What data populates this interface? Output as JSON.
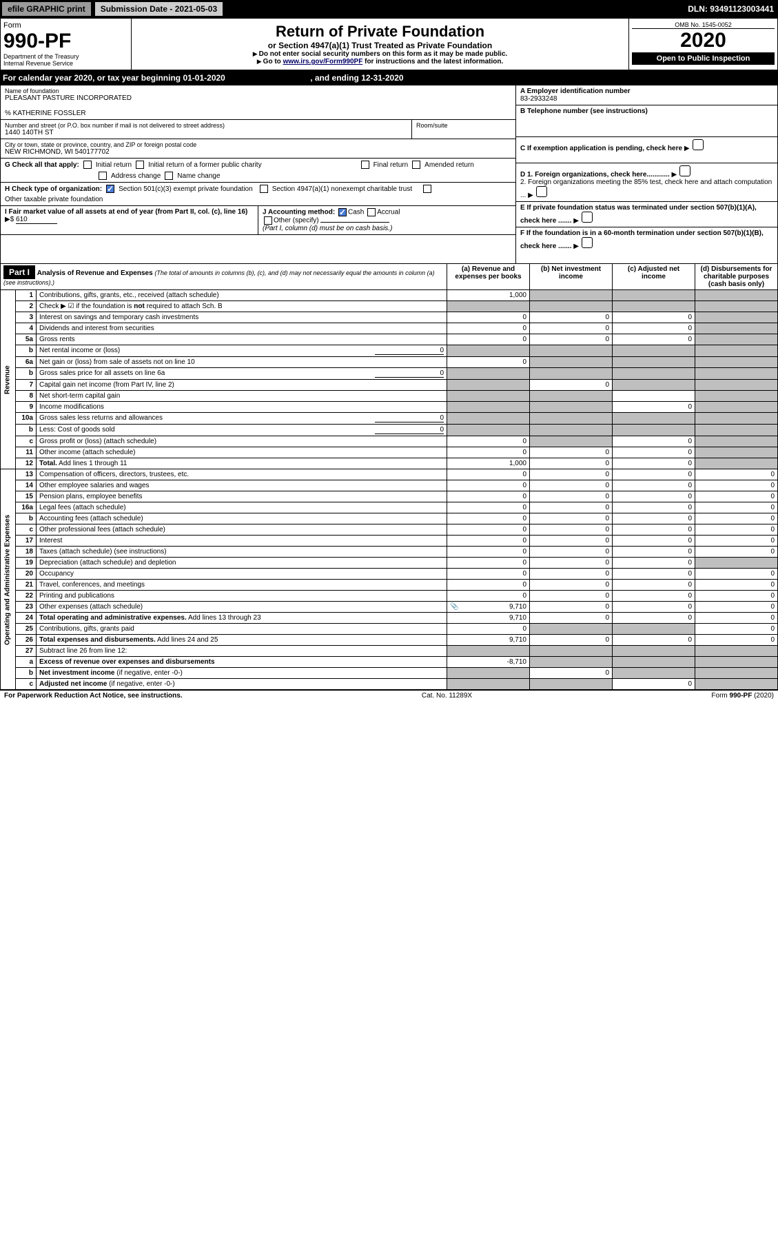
{
  "topbar": {
    "efile": "efile",
    "graphic": "GRAPHIC",
    "print": "print",
    "subdate_lbl": "Submission Date - 2021-05-03",
    "dln": "DLN: 93491123003441"
  },
  "hdr": {
    "form_lbl": "Form",
    "form_no": "990-PF",
    "dept": "Department of the Treasury",
    "irs": "Internal Revenue Service",
    "title": "Return of Private Foundation",
    "subtitle": "or Section 4947(a)(1) Trust Treated as Private Foundation",
    "inst1": "Do not enter social security numbers on this form as it may be made public.",
    "inst2": "Go to ",
    "inst2_link": "www.irs.gov/Form990PF",
    "inst2_tail": " for instructions and the latest information.",
    "omb": "OMB No. 1545-0052",
    "year": "2020",
    "open": "Open to Public Inspection"
  },
  "calyr": {
    "pre": "For calendar year 2020, or tax year beginning ",
    "beg": "01-01-2020",
    "mid": " , and ending ",
    "end": "12-31-2020"
  },
  "id": {
    "name_lbl": "Name of foundation",
    "name": "PLEASANT PASTURE INCORPORATED",
    "co": "% KATHERINE FOSSLER",
    "addr_lbl": "Number and street (or P.O. box number if mail is not delivered to street address)",
    "addr": "1440 140TH ST",
    "room_lbl": "Room/suite",
    "city_lbl": "City or town, state or province, country, and ZIP or foreign postal code",
    "city": "NEW RICHMOND, WI  540177702",
    "a_lbl": "A Employer identification number",
    "a": "83-2933248",
    "b_lbl": "B Telephone number (see instructions)",
    "b": "",
    "c_lbl": "C If exemption application is pending, check here",
    "d1": "D 1. Foreign organizations, check here............",
    "d2": "2. Foreign organizations meeting the 85% test, check here and attach computation ...",
    "e": "E  If private foundation status was terminated under section 507(b)(1)(A), check here .......",
    "f": "F  If the foundation is in a 60-month termination under section 507(b)(1)(B), check here ......."
  },
  "g": {
    "lbl": "G Check all that apply:",
    "o": [
      "Initial return",
      "Initial return of a former public charity",
      "Final return",
      "Amended return",
      "Address change",
      "Name change"
    ]
  },
  "h": {
    "lbl": "H Check type of organization:",
    "o": [
      "Section 501(c)(3) exempt private foundation",
      "Section 4947(a)(1) nonexempt charitable trust",
      "Other taxable private foundation"
    ]
  },
  "i": {
    "lbl": "I Fair market value of all assets at end of year (from Part II, col. (c), line 16)",
    "val": "610"
  },
  "j": {
    "lbl": "J Accounting method:",
    "o": [
      "Cash",
      "Accrual",
      "Other (specify)"
    ],
    "note": "(Part I, column (d) must be on cash basis.)"
  },
  "p1": {
    "part": "Part I",
    "title": "Analysis of Revenue and Expenses",
    "title_sub": "(The total of amounts in columns (b), (c), and (d) may not necessarily equal the amounts in column (a) (see instructions).)",
    "cols": {
      "a": "(a) Revenue and expenses per books",
      "b": "(b) Net investment income",
      "c": "(c) Adjusted net income",
      "d": "(d) Disbursements for charitable purposes (cash basis only)"
    },
    "rev_lbl": "Revenue",
    "exp_lbl": "Operating and Administrative Expenses",
    "rows": [
      {
        "n": "1",
        "d": "Contributions, gifts, grants, etc., received (attach schedule)",
        "a": "1,000",
        "b": "",
        "c": "",
        "dd": "",
        "gb": 1,
        "gc": 1,
        "gd": 1
      },
      {
        "n": "2",
        "d": "Check ▶ ☑ if the foundation is <b>not</b> required to attach Sch. B",
        "a": "",
        "b": "",
        "c": "",
        "dd": "",
        "ga": 1,
        "gb": 1,
        "gc": 1,
        "gd": 1,
        "html": 1
      },
      {
        "n": "3",
        "d": "Interest on savings and temporary cash investments",
        "a": "0",
        "b": "0",
        "c": "0",
        "dd": "",
        "gd": 1
      },
      {
        "n": "4",
        "d": "Dividends and interest from securities",
        "a": "0",
        "b": "0",
        "c": "0",
        "dd": "",
        "gd": 1
      },
      {
        "n": "5a",
        "d": "Gross rents",
        "a": "0",
        "b": "0",
        "c": "0",
        "dd": "",
        "gd": 1
      },
      {
        "n": "b",
        "d": "Net rental income or (loss)",
        "inline": "0",
        "a": "",
        "b": "",
        "c": "",
        "dd": "",
        "ga": 1,
        "gb": 1,
        "gc": 1,
        "gd": 1
      },
      {
        "n": "6a",
        "d": "Net gain or (loss) from sale of assets not on line 10",
        "a": "0",
        "b": "",
        "c": "",
        "dd": "",
        "gb": 1,
        "gc": 1,
        "gd": 1
      },
      {
        "n": "b",
        "d": "Gross sales price for all assets on line 6a",
        "inline": "0",
        "a": "",
        "b": "",
        "c": "",
        "dd": "",
        "ga": 1,
        "gb": 1,
        "gc": 1,
        "gd": 1
      },
      {
        "n": "7",
        "d": "Capital gain net income (from Part IV, line 2)",
        "a": "",
        "b": "0",
        "c": "",
        "dd": "",
        "ga": 1,
        "gc": 1,
        "gd": 1
      },
      {
        "n": "8",
        "d": "Net short-term capital gain",
        "a": "",
        "b": "",
        "c": "",
        "dd": "",
        "ga": 1,
        "gb": 1,
        "gd": 1
      },
      {
        "n": "9",
        "d": "Income modifications",
        "a": "",
        "b": "",
        "c": "0",
        "dd": "",
        "ga": 1,
        "gb": 1,
        "gd": 1
      },
      {
        "n": "10a",
        "d": "Gross sales less returns and allowances",
        "inline": "0",
        "a": "",
        "b": "",
        "c": "",
        "dd": "",
        "ga": 1,
        "gb": 1,
        "gc": 1,
        "gd": 1
      },
      {
        "n": "b",
        "d": "Less: Cost of goods sold",
        "inline": "0",
        "a": "",
        "b": "",
        "c": "",
        "dd": "",
        "ga": 1,
        "gb": 1,
        "gc": 1,
        "gd": 1
      },
      {
        "n": "c",
        "d": "Gross profit or (loss) (attach schedule)",
        "a": "0",
        "b": "",
        "c": "0",
        "dd": "",
        "gb": 1,
        "gd": 1
      },
      {
        "n": "11",
        "d": "Other income (attach schedule)",
        "a": "0",
        "b": "0",
        "c": "0",
        "dd": "",
        "gd": 1
      },
      {
        "n": "12",
        "d": "<b>Total.</b> Add lines 1 through 11",
        "a": "1,000",
        "b": "0",
        "c": "0",
        "dd": "",
        "gd": 1,
        "html": 1
      },
      {
        "n": "13",
        "d": "Compensation of officers, directors, trustees, etc.",
        "a": "0",
        "b": "0",
        "c": "0",
        "dd": "0"
      },
      {
        "n": "14",
        "d": "Other employee salaries and wages",
        "a": "0",
        "b": "0",
        "c": "0",
        "dd": "0"
      },
      {
        "n": "15",
        "d": "Pension plans, employee benefits",
        "a": "0",
        "b": "0",
        "c": "0",
        "dd": "0"
      },
      {
        "n": "16a",
        "d": "Legal fees (attach schedule)",
        "a": "0",
        "b": "0",
        "c": "0",
        "dd": "0"
      },
      {
        "n": "b",
        "d": "Accounting fees (attach schedule)",
        "a": "0",
        "b": "0",
        "c": "0",
        "dd": "0"
      },
      {
        "n": "c",
        "d": "Other professional fees (attach schedule)",
        "a": "0",
        "b": "0",
        "c": "0",
        "dd": "0"
      },
      {
        "n": "17",
        "d": "Interest",
        "a": "0",
        "b": "0",
        "c": "0",
        "dd": "0"
      },
      {
        "n": "18",
        "d": "Taxes (attach schedule) (see instructions)",
        "a": "0",
        "b": "0",
        "c": "0",
        "dd": "0"
      },
      {
        "n": "19",
        "d": "Depreciation (attach schedule) and depletion",
        "a": "0",
        "b": "0",
        "c": "0",
        "dd": "",
        "gd": 1
      },
      {
        "n": "20",
        "d": "Occupancy",
        "a": "0",
        "b": "0",
        "c": "0",
        "dd": "0"
      },
      {
        "n": "21",
        "d": "Travel, conferences, and meetings",
        "a": "0",
        "b": "0",
        "c": "0",
        "dd": "0"
      },
      {
        "n": "22",
        "d": "Printing and publications",
        "a": "0",
        "b": "0",
        "c": "0",
        "dd": "0"
      },
      {
        "n": "23",
        "d": "Other expenses (attach schedule)",
        "a": "9,710",
        "b": "0",
        "c": "0",
        "dd": "0",
        "icon": 1
      },
      {
        "n": "24",
        "d": "<b>Total operating and administrative expenses.</b> Add lines 13 through 23",
        "a": "9,710",
        "b": "0",
        "c": "0",
        "dd": "0",
        "html": 1
      },
      {
        "n": "25",
        "d": "Contributions, gifts, grants paid",
        "a": "0",
        "b": "",
        "c": "",
        "dd": "0",
        "gb": 1,
        "gc": 1
      },
      {
        "n": "26",
        "d": "<b>Total expenses and disbursements.</b> Add lines 24 and 25",
        "a": "9,710",
        "b": "0",
        "c": "0",
        "dd": "0",
        "html": 1
      },
      {
        "n": "27",
        "d": "Subtract line 26 from line 12:",
        "a": "",
        "b": "",
        "c": "",
        "dd": "",
        "ga": 1,
        "gb": 1,
        "gc": 1,
        "gd": 1
      },
      {
        "n": "a",
        "d": "<b>Excess of revenue over expenses and disbursements</b>",
        "a": "-8,710",
        "b": "",
        "c": "",
        "dd": "",
        "gb": 1,
        "gc": 1,
        "gd": 1,
        "html": 1
      },
      {
        "n": "b",
        "d": "<b>Net investment income</b> (if negative, enter -0-)",
        "a": "",
        "b": "0",
        "c": "",
        "dd": "",
        "ga": 1,
        "gc": 1,
        "gd": 1,
        "html": 1
      },
      {
        "n": "c",
        "d": "<b>Adjusted net income</b> (if negative, enter -0-)",
        "a": "",
        "b": "",
        "c": "0",
        "dd": "",
        "ga": 1,
        "gb": 1,
        "gd": 1,
        "html": 1
      }
    ]
  },
  "footer": {
    "l": "For Paperwork Reduction Act Notice, see instructions.",
    "c": "Cat. No. 11289X",
    "r": "Form 990-PF (2020)"
  }
}
